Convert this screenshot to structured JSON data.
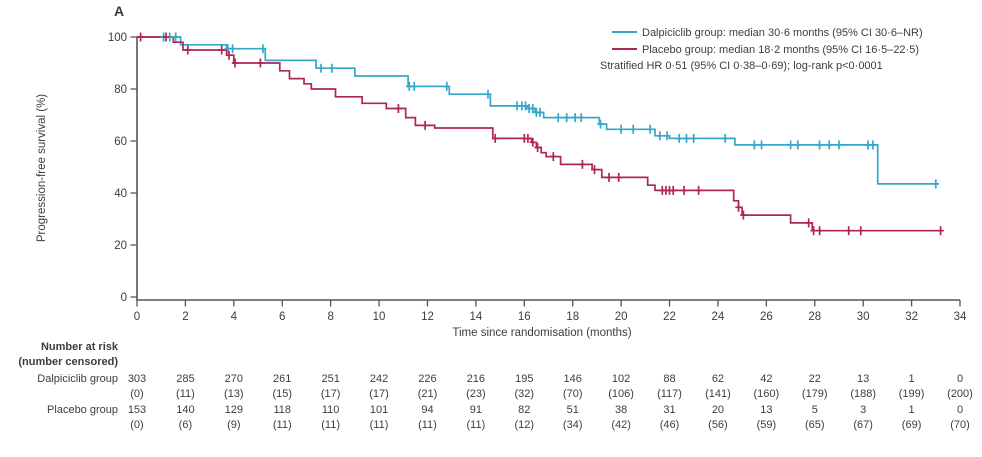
{
  "figure": {
    "panel_label": "A"
  },
  "axes": {
    "y_title": "Progression-free survival (%)",
    "x_title": "Time since randomisation (months)",
    "y_ticks": [
      0,
      20,
      40,
      60,
      80,
      100
    ],
    "x_ticks": [
      0,
      2,
      4,
      6,
      8,
      10,
      12,
      14,
      16,
      18,
      20,
      22,
      24,
      26,
      28,
      30,
      32,
      34
    ],
    "x_range": [
      0,
      34
    ],
    "y_range": [
      0,
      100
    ],
    "axis_color": "#56565a"
  },
  "legend": {
    "items": [
      {
        "label": "Dalpiciclib group: median 30·6 months (95% CI 30·6–NR)",
        "color": "#35a7c8"
      },
      {
        "label": "Placebo group: median 18·2 months (95% CI 16·5–22·5)",
        "color": "#b02558"
      }
    ],
    "note": "Stratified HR 0·51 (95% CI 0·38–0·69); log-rank p<0·0001"
  },
  "chart_data": {
    "type": "line",
    "subtype": "kaplan-meier-step",
    "title": "",
    "xlabel": "Time since randomisation (months)",
    "ylabel": "Progression-free survival (%)",
    "xlim": [
      0,
      34
    ],
    "ylim": [
      0,
      100
    ],
    "grid": false,
    "legend_position": "top-right",
    "series": [
      {
        "name": "Dalpiciclib group",
        "color": "#35a7c8",
        "median_months": "30·6",
        "ci_95": "30·6–NR",
        "points": [
          [
            0,
            100
          ],
          [
            1.8,
            97
          ],
          [
            3.7,
            95.5
          ],
          [
            5.3,
            91
          ],
          [
            7.4,
            88
          ],
          [
            9.0,
            85
          ],
          [
            11.2,
            81
          ],
          [
            12.9,
            78
          ],
          [
            14.6,
            73.5
          ],
          [
            16.1,
            72.5
          ],
          [
            16.45,
            71
          ],
          [
            16.8,
            69
          ],
          [
            19.1,
            66.5
          ],
          [
            19.4,
            64.5
          ],
          [
            21.4,
            62
          ],
          [
            22.0,
            61
          ],
          [
            24.7,
            58.5
          ],
          [
            30.6,
            43.5
          ],
          [
            33.1,
            43.5
          ]
        ],
        "censor_times": [
          1.1,
          1.35,
          1.6,
          3.75,
          3.95,
          5.2,
          7.6,
          8.05,
          11.25,
          11.45,
          12.8,
          14.5,
          15.7,
          15.9,
          16.05,
          16.2,
          16.35,
          16.5,
          16.65,
          17.4,
          17.75,
          18.1,
          18.35,
          19.15,
          20.0,
          20.5,
          21.2,
          21.6,
          21.9,
          22.4,
          22.7,
          23.0,
          24.3,
          25.5,
          25.8,
          27.0,
          27.3,
          28.2,
          28.6,
          29.0,
          30.2,
          30.4,
          33.0
        ]
      },
      {
        "name": "Placebo group",
        "color": "#b02558",
        "median_months": "18·2",
        "ci_95": "16·5–22·5",
        "points": [
          [
            0,
            100
          ],
          [
            1.5,
            98
          ],
          [
            1.9,
            95
          ],
          [
            3.7,
            93
          ],
          [
            4.0,
            90
          ],
          [
            5.9,
            87
          ],
          [
            6.3,
            84
          ],
          [
            6.9,
            82
          ],
          [
            7.2,
            80
          ],
          [
            8.2,
            77
          ],
          [
            9.3,
            74.5
          ],
          [
            10.3,
            72.5
          ],
          [
            11.1,
            69
          ],
          [
            11.5,
            66
          ],
          [
            12.3,
            65
          ],
          [
            14.7,
            61
          ],
          [
            16.3,
            59.5
          ],
          [
            16.5,
            57.5
          ],
          [
            16.7,
            55.5
          ],
          [
            16.9,
            54
          ],
          [
            17.5,
            51
          ],
          [
            18.8,
            49
          ],
          [
            19.2,
            46
          ],
          [
            21.1,
            43
          ],
          [
            21.4,
            41
          ],
          [
            24.65,
            37
          ],
          [
            24.85,
            34.5
          ],
          [
            25.0,
            31.5
          ],
          [
            27.0,
            28.5
          ],
          [
            27.9,
            25.5
          ],
          [
            33.3,
            25.5
          ]
        ],
        "censor_times": [
          0.15,
          1.2,
          2.1,
          3.5,
          3.8,
          4.05,
          5.1,
          10.8,
          11.9,
          14.8,
          16.0,
          16.15,
          16.35,
          16.55,
          17.2,
          18.4,
          18.9,
          19.5,
          19.9,
          21.7,
          21.85,
          22.0,
          22.15,
          22.6,
          23.2,
          24.85,
          25.05,
          27.75,
          27.95,
          28.2,
          29.4,
          29.9,
          33.2
        ]
      }
    ]
  },
  "risk_table": {
    "title_line1": "Number at risk",
    "title_line2": "(number censored)",
    "times": [
      0,
      2,
      4,
      6,
      8,
      10,
      12,
      14,
      16,
      18,
      20,
      22,
      24,
      26,
      28,
      30,
      32,
      34
    ],
    "rows": [
      {
        "label": "Dalpiciclib group",
        "at_risk": [
          303,
          285,
          270,
          261,
          251,
          242,
          226,
          216,
          195,
          146,
          102,
          88,
          62,
          42,
          22,
          13,
          1,
          0
        ],
        "censored": [
          "(0)",
          "(11)",
          "(13)",
          "(15)",
          "(17)",
          "(17)",
          "(21)",
          "(23)",
          "(32)",
          "(70)",
          "(106)",
          "(117)",
          "(141)",
          "(160)",
          "(179)",
          "(188)",
          "(199)",
          "(200)"
        ]
      },
      {
        "label": "Placebo group",
        "at_risk": [
          153,
          140,
          129,
          118,
          110,
          101,
          94,
          91,
          82,
          51,
          38,
          31,
          20,
          13,
          5,
          3,
          1,
          0
        ],
        "censored": [
          "(0)",
          "(6)",
          "(9)",
          "(11)",
          "(11)",
          "(11)",
          "(11)",
          "(11)",
          "(12)",
          "(34)",
          "(42)",
          "(46)",
          "(56)",
          "(59)",
          "(65)",
          "(67)",
          "(69)",
          "(70)"
        ]
      }
    ]
  }
}
